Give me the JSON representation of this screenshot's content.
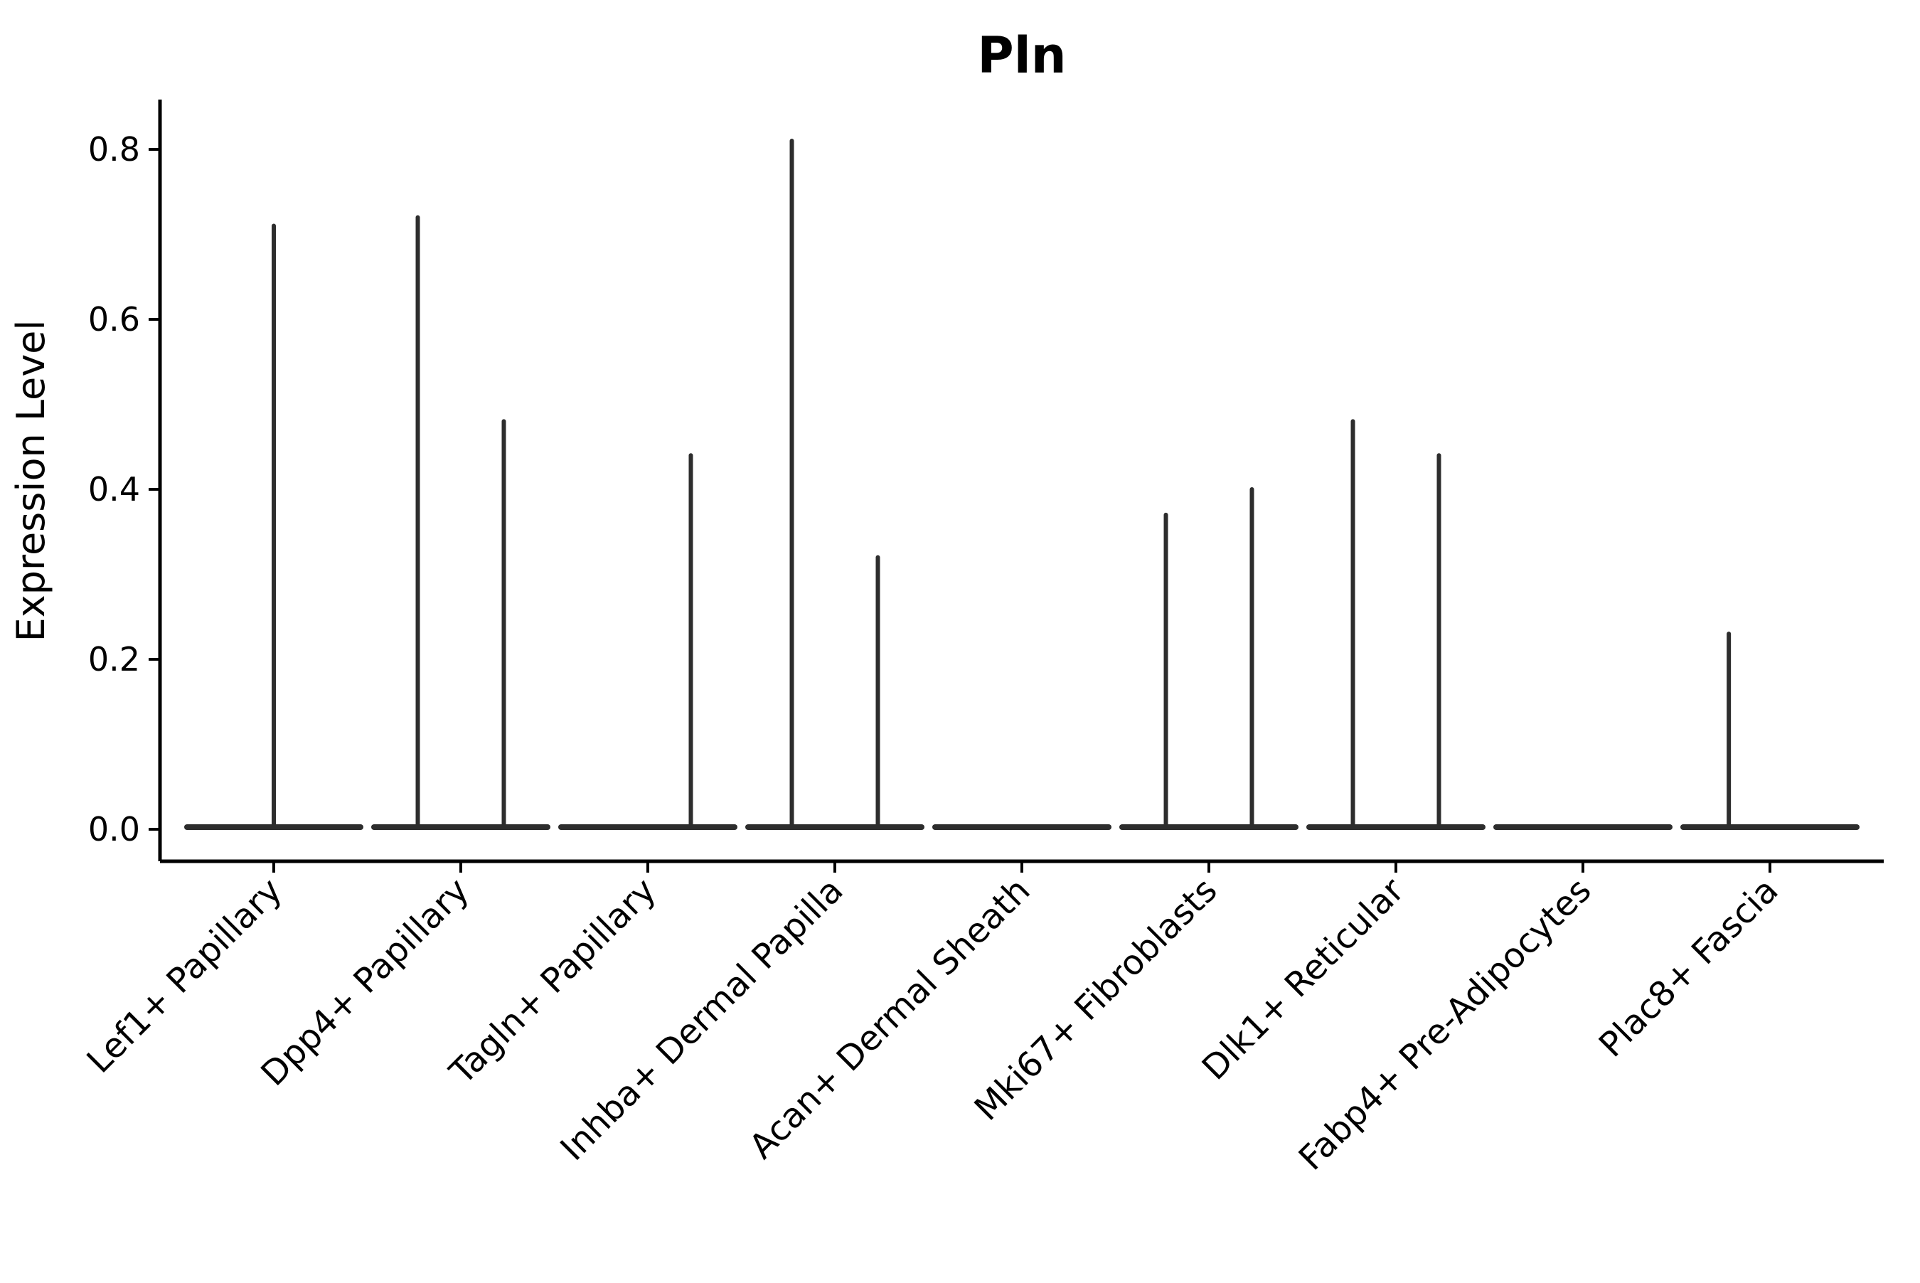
{
  "page": {
    "background_color": "#ffffff"
  },
  "chart_data": {
    "type": "violin",
    "title": "Pln",
    "xlabel": "",
    "ylabel": "Expression Level",
    "ylim": [
      0,
      0.86
    ],
    "grid": false,
    "legend": "none",
    "yticks": [
      {
        "value": 0.0,
        "label": "0.0"
      },
      {
        "value": 0.2,
        "label": "0.2"
      },
      {
        "value": 0.4,
        "label": "0.4"
      },
      {
        "value": 0.6,
        "label": "0.6"
      },
      {
        "value": 0.8,
        "label": "0.8"
      }
    ],
    "categories": [
      "Lef1+ Papillary",
      "Dpp4+ Papillary",
      "Tagln+ Papillary",
      "Inhba+ Dermal Papilla",
      "Acan+ Dermal Sheath",
      "Mki67+ Fibroblasts",
      "Dlk1+ Reticular",
      "Fabp4+ Pre-Adipocytes",
      "Plac8+ Fascia"
    ],
    "violins": [
      {
        "category": "Lef1+ Papillary",
        "baseline_value": 0.0,
        "spikes": [
          {
            "offset_frac": 0.0,
            "peak": 0.71
          }
        ]
      },
      {
        "category": "Dpp4+ Papillary",
        "baseline_value": 0.0,
        "spikes": [
          {
            "offset_frac": -0.23,
            "peak": 0.72
          },
          {
            "offset_frac": 0.23,
            "peak": 0.48
          }
        ]
      },
      {
        "category": "Tagln+ Papillary",
        "baseline_value": 0.0,
        "spikes": [
          {
            "offset_frac": 0.23,
            "peak": 0.44
          }
        ]
      },
      {
        "category": "Inhba+ Dermal Papilla",
        "baseline_value": 0.0,
        "spikes": [
          {
            "offset_frac": -0.23,
            "peak": 0.81
          },
          {
            "offset_frac": 0.23,
            "peak": 0.32
          }
        ]
      },
      {
        "category": "Acan+ Dermal Sheath",
        "baseline_value": 0.0,
        "spikes": []
      },
      {
        "category": "Mki67+ Fibroblasts",
        "baseline_value": 0.0,
        "spikes": [
          {
            "offset_frac": -0.23,
            "peak": 0.37
          },
          {
            "offset_frac": 0.23,
            "peak": 0.4
          }
        ]
      },
      {
        "category": "Dlk1+ Reticular",
        "baseline_value": 0.0,
        "spikes": [
          {
            "offset_frac": -0.23,
            "peak": 0.48
          },
          {
            "offset_frac": 0.23,
            "peak": 0.44
          }
        ]
      },
      {
        "category": "Fabp4+ Pre-Adipocytes",
        "baseline_value": 0.0,
        "spikes": []
      },
      {
        "category": "Plac8+ Fascia",
        "baseline_value": 0.0,
        "spikes": [
          {
            "offset_frac": -0.22,
            "peak": 0.23
          }
        ]
      }
    ],
    "colors": {
      "violin": "#2d2d2d",
      "axis": "#000000",
      "text": "#000000",
      "background": "#ffffff"
    }
  }
}
